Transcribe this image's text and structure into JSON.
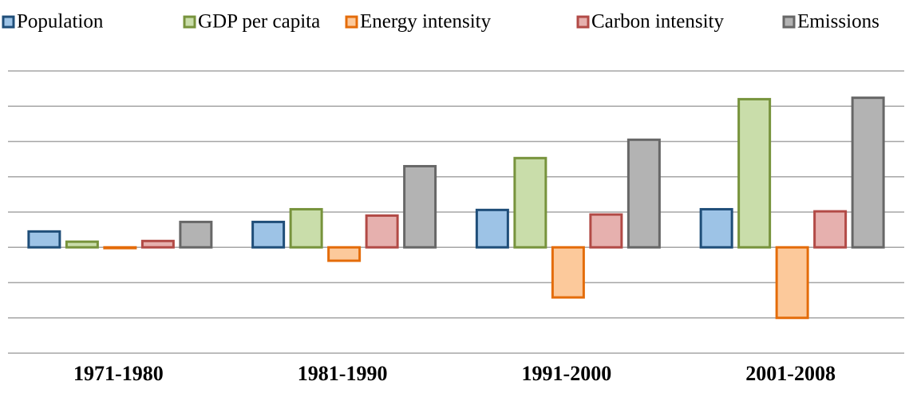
{
  "chart_data": {
    "type": "bar",
    "categories": [
      "1971-1980",
      "1981-1990",
      "1991-2000",
      "2001-2008"
    ],
    "series": [
      {
        "name": "Population",
        "color": "#1f4e79",
        "fill": "#9dc3e6",
        "values": [
          0.45,
          0.72,
          1.06,
          1.08
        ]
      },
      {
        "name": "GDP per capita",
        "color": "#77933c",
        "fill": "#c9ddaa",
        "values": [
          0.16,
          1.08,
          2.53,
          4.2
        ]
      },
      {
        "name": "Energy intensity",
        "color": "#e46c0a",
        "fill": "#fcc99b",
        "values": [
          -0.02,
          -0.38,
          -1.42,
          -2.0
        ]
      },
      {
        "name": "Carbon intensity",
        "color": "#b24a46",
        "fill": "#e6b0ae",
        "values": [
          0.18,
          0.9,
          0.93,
          1.02
        ]
      },
      {
        "name": "Emissions",
        "color": "#676767",
        "fill": "#b3b3b3",
        "values": [
          0.72,
          2.3,
          3.05,
          4.24
        ]
      }
    ],
    "ylim": [
      -3,
      5
    ],
    "yticks": [
      -3,
      -2,
      -1,
      0,
      1,
      2,
      3,
      4,
      5
    ],
    "grid": true,
    "legend": "top"
  }
}
